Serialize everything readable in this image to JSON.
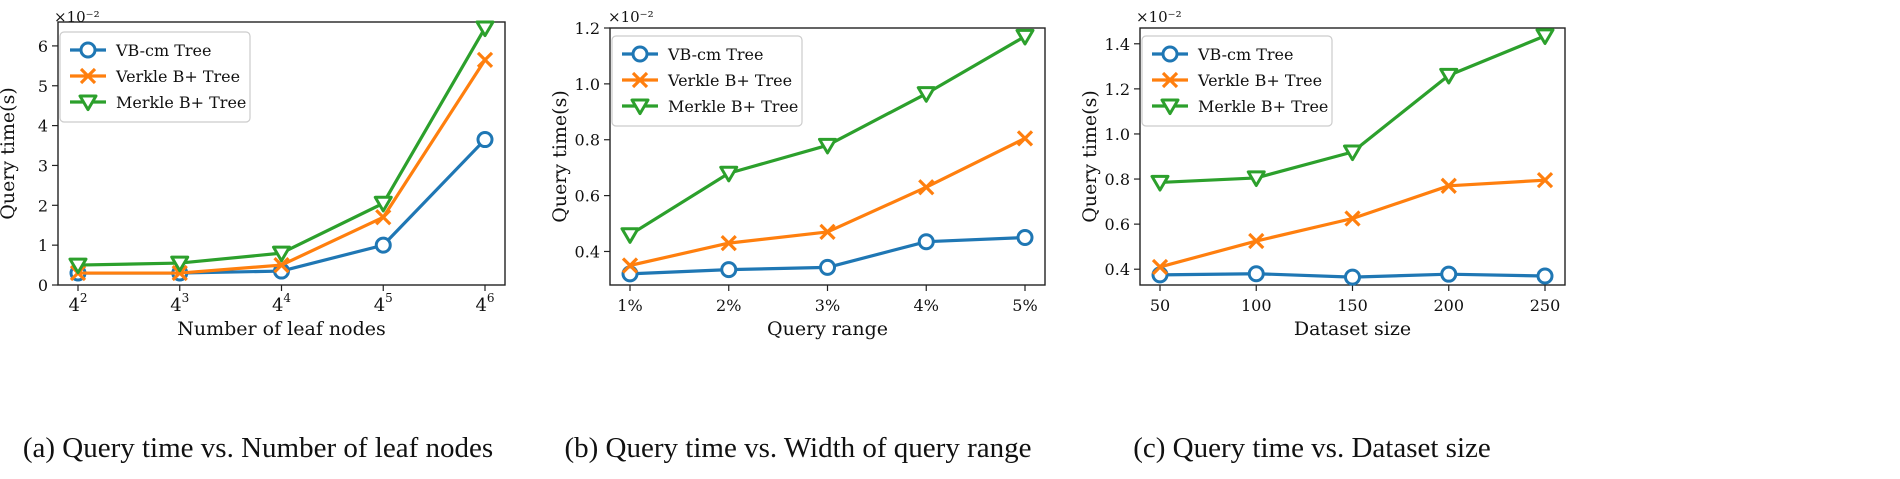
{
  "colors": {
    "vb": "#1f77b4",
    "verkle": "#ff7f0e",
    "merkle": "#2ca02c",
    "axis": "#222222"
  },
  "chart_data": [
    {
      "type": "line",
      "caption": "(a) Query time vs. Number of leaf nodes",
      "xlabel": "Number of leaf nodes",
      "ylabel": "Query time(s)",
      "multiplier": "×10⁻²",
      "x_tick_labels": [
        {
          "base": "4",
          "exp": "2"
        },
        {
          "base": "4",
          "exp": "3"
        },
        {
          "base": "4",
          "exp": "4"
        },
        {
          "base": "4",
          "exp": "5"
        },
        {
          "base": "4",
          "exp": "6"
        }
      ],
      "ylim": [
        0,
        6.6
      ],
      "yticks": [
        0,
        1,
        2,
        3,
        4,
        5,
        6
      ],
      "ytick_labels": [
        "0",
        "1",
        "2",
        "3",
        "4",
        "5",
        "6"
      ],
      "legend": "top-left",
      "grid": false,
      "series": [
        {
          "name": "VB-cm Tree",
          "marker": "circle",
          "color_key": "vb",
          "values": [
            0.3,
            0.3,
            0.35,
            1.0,
            3.65
          ]
        },
        {
          "name": "Verkle B+ Tree",
          "marker": "x",
          "color_key": "verkle",
          "values": [
            0.3,
            0.3,
            0.5,
            1.7,
            5.65
          ]
        },
        {
          "name": "Merkle B+ Tree",
          "marker": "triangle-down",
          "color_key": "merkle",
          "values": [
            0.5,
            0.55,
            0.8,
            2.05,
            6.45
          ]
        }
      ]
    },
    {
      "type": "line",
      "caption": "(b) Query time vs. Width of query range",
      "xlabel": "Query range",
      "ylabel": "Query time(s)",
      "multiplier": "×10⁻²",
      "x_tick_labels": [
        "1%",
        "2%",
        "3%",
        "4%",
        "5%"
      ],
      "ylim": [
        0.28,
        1.2
      ],
      "yticks": [
        0.4,
        0.6,
        0.8,
        1.0,
        1.2
      ],
      "ytick_labels": [
        "0.4",
        "0.6",
        "0.8",
        "1.0",
        "1.2"
      ],
      "legend": "top-left",
      "grid": false,
      "series": [
        {
          "name": "VB-cm Tree",
          "marker": "circle",
          "color_key": "vb",
          "values": [
            0.32,
            0.335,
            0.343,
            0.435,
            0.45
          ]
        },
        {
          "name": "Verkle B+ Tree",
          "marker": "x",
          "color_key": "verkle",
          "values": [
            0.35,
            0.43,
            0.47,
            0.63,
            0.805
          ]
        },
        {
          "name": "Merkle B+ Tree",
          "marker": "triangle-down",
          "color_key": "merkle",
          "values": [
            0.46,
            0.68,
            0.78,
            0.965,
            1.17
          ]
        }
      ]
    },
    {
      "type": "line",
      "caption": "(c) Query time vs. Dataset size",
      "xlabel": "Dataset size",
      "ylabel": "Query time(s)",
      "multiplier": "×10⁻²",
      "x_tick_labels": [
        "50",
        "100",
        "150",
        "200",
        "250"
      ],
      "ylim": [
        0.33,
        1.47
      ],
      "yticks": [
        0.4,
        0.6,
        0.8,
        1.0,
        1.2,
        1.4
      ],
      "ytick_labels": [
        "0.4",
        "0.6",
        "0.8",
        "1.0",
        "1.2",
        "1.4"
      ],
      "legend": "top-left",
      "grid": false,
      "series": [
        {
          "name": "VB-cm Tree",
          "marker": "circle",
          "color_key": "vb",
          "values": [
            0.375,
            0.38,
            0.365,
            0.378,
            0.37
          ]
        },
        {
          "name": "Verkle B+ Tree",
          "marker": "x",
          "color_key": "verkle",
          "values": [
            0.41,
            0.525,
            0.625,
            0.77,
            0.795
          ]
        },
        {
          "name": "Merkle B+ Tree",
          "marker": "triangle-down",
          "color_key": "merkle",
          "values": [
            0.785,
            0.805,
            0.92,
            1.26,
            1.435
          ]
        }
      ]
    }
  ]
}
